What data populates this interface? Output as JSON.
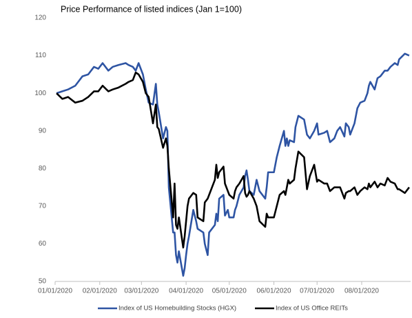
{
  "chart_data": {
    "type": "line",
    "title": "Price Performance of listed indices (Jan 1=100)",
    "x": [
      "01/02/2020",
      "01/06/2020",
      "01/10/2020",
      "01/15/2020",
      "01/20/2020",
      "01/24/2020",
      "01/28/2020",
      "01/31/2020",
      "02/03/2020",
      "02/07/2020",
      "02/10/2020",
      "02/14/2020",
      "02/19/2020",
      "02/21/2020",
      "02/24/2020",
      "02/26/2020",
      "02/28/2020",
      "03/02/2020",
      "03/04/2020",
      "03/06/2020",
      "03/09/2020",
      "03/11/2020",
      "03/12/2020",
      "03/13/2020",
      "03/16/2020",
      "03/18/2020",
      "03/19/2020",
      "03/20/2020",
      "03/23/2020",
      "03/24/2020",
      "03/25/2020",
      "03/26/2020",
      "03/27/2020",
      "03/30/2020",
      "03/31/2020",
      "04/01/2020",
      "04/02/2020",
      "04/03/2020",
      "04/06/2020",
      "04/08/2020",
      "04/09/2020",
      "04/13/2020",
      "04/14/2020",
      "04/16/2020",
      "04/17/2020",
      "04/21/2020",
      "04/22/2020",
      "04/23/2020",
      "04/24/2020",
      "04/27/2020",
      "04/28/2020",
      "04/30/2020",
      "05/01/2020",
      "05/04/2020",
      "05/05/2020",
      "05/06/2020",
      "05/08/2020",
      "05/11/2020",
      "05/12/2020",
      "05/13/2020",
      "05/14/2020",
      "05/15/2020",
      "05/18/2020",
      "05/20/2020",
      "05/22/2020",
      "05/26/2020",
      "05/27/2020",
      "05/28/2020",
      "06/01/2020",
      "06/03/2020",
      "06/05/2020",
      "06/08/2020",
      "06/09/2020",
      "06/10/2020",
      "06/11/2020",
      "06/12/2020",
      "06/15/2020",
      "06/16/2020",
      "06/18/2020",
      "06/22/2020",
      "06/24/2020",
      "06/26/2020",
      "06/29/2020",
      "07/01/2020",
      "07/02/2020",
      "07/06/2020",
      "07/08/2020",
      "07/10/2020",
      "07/13/2020",
      "07/15/2020",
      "07/17/2020",
      "07/20/2020",
      "07/21/2020",
      "07/23/2020",
      "07/24/2020",
      "07/27/2020",
      "07/29/2020",
      "07/31/2020",
      "08/03/2020",
      "08/05/2020",
      "08/06/2020",
      "08/07/2020",
      "08/10/2020",
      "08/12/2020",
      "08/14/2020",
      "08/17/2020",
      "08/19/2020",
      "08/21/2020",
      "08/24/2020",
      "08/26/2020",
      "08/27/2020",
      "08/31/2020",
      "09/03/2020"
    ],
    "series": [
      {
        "name": "Index of US Homebuilding Stocks (HGX)",
        "color": "#2e54a3",
        "values": [
          100,
          100.5,
          101,
          102,
          104.5,
          105,
          107,
          106.5,
          108,
          106,
          107,
          107.5,
          108,
          107.5,
          107,
          106,
          108,
          105,
          101,
          97.5,
          97,
          102.5,
          97,
          95,
          88,
          91,
          90,
          75,
          63,
          63,
          57,
          55,
          58,
          51.5,
          53.5,
          57,
          60,
          62,
          69,
          66,
          64,
          63,
          60,
          57,
          63,
          65,
          68,
          66,
          72,
          73,
          67.5,
          69,
          67,
          67,
          69,
          70,
          73,
          75,
          78,
          79.5,
          77,
          74,
          73,
          77,
          74,
          72,
          75,
          79,
          79,
          83,
          86,
          90,
          86,
          88,
          86,
          87.5,
          87,
          91,
          94,
          93,
          89,
          88,
          90,
          92,
          89,
          89.5,
          90,
          87,
          88,
          90,
          91,
          88.5,
          92,
          91,
          89,
          92,
          96,
          97.5,
          98,
          100,
          102,
          103,
          101,
          104,
          104.5,
          106,
          106,
          107,
          108,
          107.5,
          109,
          110.5,
          110
        ]
      },
      {
        "name": "Index of US Office REITs",
        "color": "#000000",
        "values": [
          100,
          98.5,
          99,
          97.5,
          98,
          99,
          100.5,
          100.5,
          102,
          100.5,
          101,
          101.5,
          102.5,
          103,
          103.5,
          105.5,
          105,
          103,
          100,
          99,
          92,
          97,
          91,
          90.5,
          85.5,
          88,
          86,
          80,
          67,
          76,
          65,
          64,
          67,
          59,
          62,
          66,
          70,
          72,
          73.5,
          73,
          67,
          66,
          71,
          72,
          73,
          77,
          81,
          77.5,
          79,
          80.5,
          76,
          74,
          73,
          72,
          74,
          75,
          76,
          78,
          73.5,
          72.5,
          73,
          74,
          72,
          70,
          66,
          64.5,
          68,
          67,
          67,
          70,
          73,
          74,
          73,
          75,
          77,
          76,
          77,
          80,
          84.5,
          83,
          74.5,
          78,
          81,
          76.5,
          77,
          76,
          76,
          74,
          75,
          75,
          75,
          72,
          73.5,
          74,
          74,
          75,
          73,
          74,
          75,
          74.5,
          76,
          75,
          76.5,
          75,
          76,
          75.5,
          77.5,
          76.5,
          76,
          74.5,
          74.5,
          73.5,
          75
        ]
      }
    ],
    "xlim": [
      "01/01/2020",
      "09/04/2020"
    ],
    "xticks": [
      "01/01/2020",
      "02/01/2020",
      "03/01/2020",
      "04/01/2020",
      "05/01/2020",
      "06/01/2020",
      "07/01/2020",
      "08/01/2020"
    ],
    "ylim": [
      50,
      120
    ],
    "yticks": [
      50,
      60,
      70,
      80,
      90,
      100,
      110,
      120
    ],
    "grid": false,
    "legend": "bottom"
  }
}
